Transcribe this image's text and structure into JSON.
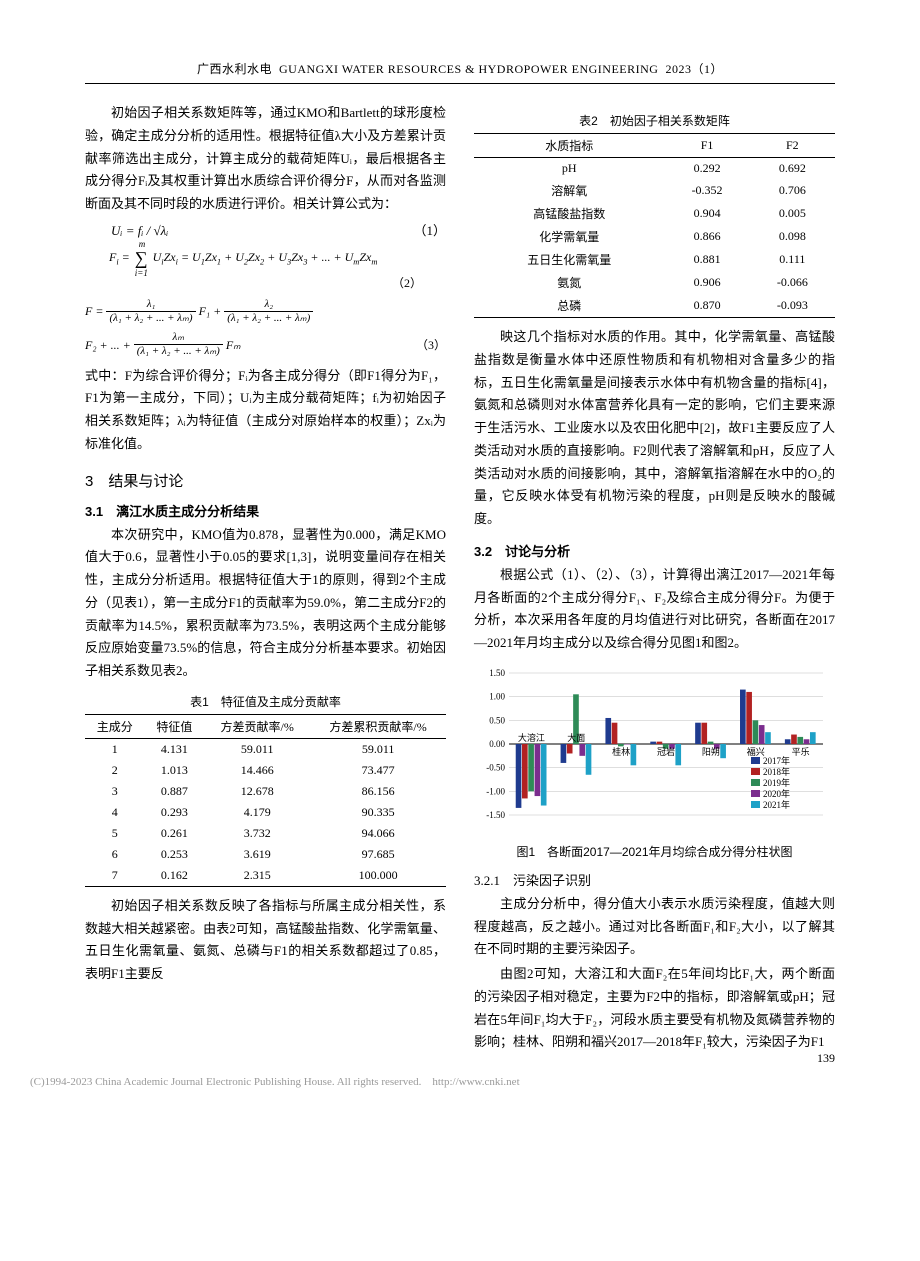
{
  "header": {
    "chinese": "广西水利水电",
    "english": "GUANGXI WATER RESOURCES & HYDROPOWER ENGINEERING",
    "issue": "2023（1）"
  },
  "left": {
    "intro_para": "初始因子相关系数矩阵等，通过KMO和Bartlett的球形度检验，确定主成分分析的适用性。根据特征值λ大小及方差累计贡献率筛选出主成分，计算主成分的载荷矩阵Uᵢ，最后根据各主成分得分Fᵢ及其权重计算出水质综合评价得分F，从而对各监测断面及其不同时段的水质进行评价。相关计算公式为：",
    "eq1": "Uᵢ = fᵢ / √λᵢ",
    "eq1_no": "（1）",
    "eq2": "Fᵢ = ∑ UᵢZxᵢ = U₁Zx₁ + U₂Zx₂ + U₃Zx₃ + ... + UₘZxₘ",
    "eq2_no": "（2）",
    "eq3_no": "（3）",
    "eq3_line1_a": "F =",
    "eq3_line2_a": "F₂ + ... +",
    "eq3_frac1_num": "λ₁",
    "eq3_frac_den": "(λ₁ + λ₂ + ... + λₘ)",
    "eq3_f1": "F₁ +",
    "eq3_frac2_num": "λ₂",
    "eq3_fracm_num": "λₘ",
    "eq3_fm": "Fₘ",
    "eq_desc": "式中：F为综合评价得分；Fᵢ为各主成分得分（即F1得分为F₁，F1为第一主成分，下同）；Uᵢ为主成分载荷矩阵；fᵢ为初始因子相关系数矩阵；λᵢ为特征值（主成分对原始样本的权重）；Zxᵢ为标准化值。",
    "section3_title": "3　结果与讨论",
    "sub31_title": "3.1　漓江水质主成分分析结果",
    "para31": "本次研究中，KMO值为0.878，显著性为0.000，满足KMO值大于0.6，显著性小于0.05的要求[1,3]，说明变量间存在相关性，主成分分析适用。根据特征值大于1的原则，得到2个主成分（见表1），第一主成分F1的贡献率为59.0%，第二主成分F2的贡献率为14.5%，累积贡献率为73.5%，表明这两个主成分能够反应原始变量73.5%的信息，符合主成分分析基本要求。初始因子相关系数见表2。",
    "table1_caption": "表1　特征值及主成分贡献率",
    "table1_headers": [
      "主成分",
      "特征值",
      "方差贡献率/%",
      "方差累积贡献率/%"
    ],
    "table1_rows": [
      [
        "1",
        "4.131",
        "59.011",
        "59.011"
      ],
      [
        "2",
        "1.013",
        "14.466",
        "73.477"
      ],
      [
        "3",
        "0.887",
        "12.678",
        "86.156"
      ],
      [
        "4",
        "0.293",
        "4.179",
        "90.335"
      ],
      [
        "5",
        "0.261",
        "3.732",
        "94.066"
      ],
      [
        "6",
        "0.253",
        "3.619",
        "97.685"
      ],
      [
        "7",
        "0.162",
        "2.315",
        "100.000"
      ]
    ],
    "para_after_t1": "初始因子相关系数反映了各指标与所属主成分相关性，系数越大相关越紧密。由表2可知，高锰酸盐指数、化学需氧量、五日生化需氧量、氨氮、总磷与F1的相关系数都超过了0.85，表明F1主要反"
  },
  "right": {
    "table2_caption": "表2　初始因子相关系数矩阵",
    "table2_headers": [
      "水质指标",
      "F1",
      "F2"
    ],
    "table2_rows": [
      [
        "pH",
        "0.292",
        "0.692"
      ],
      [
        "溶解氧",
        "-0.352",
        "0.706"
      ],
      [
        "高锰酸盐指数",
        "0.904",
        "0.005"
      ],
      [
        "化学需氧量",
        "0.866",
        "0.098"
      ],
      [
        "五日生化需氧量",
        "0.881",
        "0.111"
      ],
      [
        "氨氮",
        "0.906",
        "-0.066"
      ],
      [
        "总磷",
        "0.870",
        "-0.093"
      ]
    ],
    "para_r1": "映这几个指标对水质的作用。其中，化学需氧量、高锰酸盐指数是衡量水体中还原性物质和有机物相对含量多少的指标，五日生化需氧量是间接表示水体中有机物含量的指标[4]，氨氮和总磷则对水体富营养化具有一定的影响，它们主要来源于生活污水、工业废水以及农田化肥中[2]，故F1主要反应了人类活动对水质的直接影响。F2则代表了溶解氧和pH，反应了人类活动对水质的间接影响，其中，溶解氧指溶解在水中的O₂的量，它反映水体受有机物污染的程度，pH则是反映水的酸碱度。",
    "sub32_title": "3.2　讨论与分析",
    "para_r2": "根据公式（1）、（2）、（3），计算得出漓江2017—2021年每月各断面的2个主成分得分F₁、F₂及综合主成分得分F。为便于分析，本次采用各年度的月均值进行对比研究，各断面在2017—2021年月均主成分以及综合得分见图1和图2。",
    "figure1_caption": "图1　各断面2017—2021年月均综合成分得分柱状图",
    "subsub321_title_num": "3.2.1",
    "subsub321_title": "　污染因子识别",
    "para_r3": "主成分分析中，得分值大小表示水质污染程度，值越大则程度越高，反之越小。通过对比各断面F₁和F₂大小，以了解其在不同时期的主要污染因子。",
    "para_r4": "由图2可知，大溶江和大面F₂在5年间均比F₁大，两个断面的污染因子相对稳定，主要为F2中的指标，即溶解氧或pH；冠岩在5年间F₁均大于F₂，河段水质主要受有机物及氮磷营养物的影响；桂林、阳朔和福兴2017—2018年F₁较大，污染因子为F1"
  },
  "chart": {
    "type": "grouped-bar",
    "categories": [
      "大溶江",
      "大面",
      "桂林",
      "冠岩",
      "阳朔",
      "福兴",
      "平乐"
    ],
    "series_labels": [
      "2017年",
      "2018年",
      "2019年",
      "2020年",
      "2021年"
    ],
    "series_colors": [
      "#1f3b8f",
      "#b22222",
      "#2e8b57",
      "#7b2d8e",
      "#1ea1c7"
    ],
    "y_ticks": [
      -1.5,
      -1.0,
      -0.5,
      0.0,
      0.5,
      1.0,
      1.5
    ],
    "ylim": [
      -1.5,
      1.5
    ],
    "gridline_color": "#bfbfbf",
    "axis_color": "#000000",
    "background": "#ffffff",
    "label_fontsize": 9,
    "data": {
      "大溶江": [
        -1.35,
        -1.15,
        -1.0,
        -1.1,
        -1.3
      ],
      "大面": [
        -0.4,
        -0.2,
        1.05,
        -0.25,
        -0.65
      ],
      "桂林": [
        0.55,
        0.45,
        -0.05,
        0.0,
        -0.45
      ],
      "冠岩": [
        0.05,
        0.05,
        -0.1,
        -0.1,
        -0.45
      ],
      "阳朔": [
        0.45,
        0.45,
        0.05,
        -0.1,
        -0.3
      ],
      "福兴": [
        1.15,
        1.1,
        0.5,
        0.4,
        0.25
      ],
      "平乐": [
        0.1,
        0.2,
        0.15,
        0.1,
        0.25
      ]
    }
  },
  "page_number": "139",
  "footer": {
    "text_left": "(C)1994-2023 China Academic Journal Electronic Publishing House. All rights reserved.",
    "text_right": "http://www.cnki.net"
  }
}
